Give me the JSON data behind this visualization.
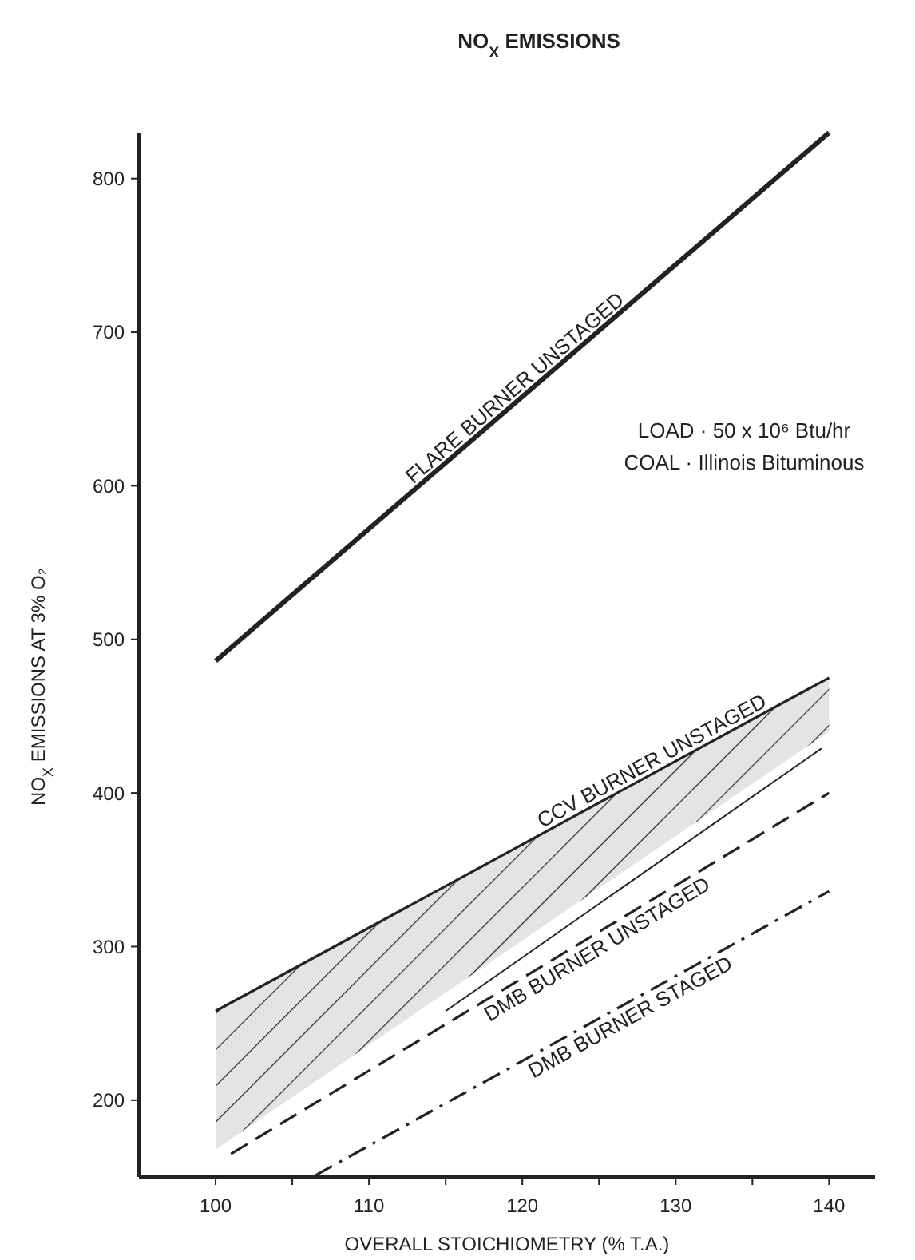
{
  "chart_data": {
    "type": "line",
    "title": "NO$_{X}$ EMISSIONS",
    "xlabel": "OVERALL STOICHIOMETRY (% T.A.)",
    "ylabel": "NO$_{X}$ EMISSIONS AT 3% O₂",
    "xlim": [
      95,
      143
    ],
    "ylim": [
      150,
      830
    ],
    "xticks": [
      100,
      {
        "value": 105,
        "label": null
      },
      110,
      {
        "value": 115,
        "label": null
      },
      120,
      {
        "value": 125,
        "label": null
      },
      130,
      {
        "value": 135,
        "label": null
      },
      140
    ],
    "yticks": [
      200,
      300,
      400,
      500,
      600,
      700,
      800
    ],
    "grid": false,
    "legend": false,
    "marker": "none",
    "annotations": [
      "LOAD · 50 x 10⁶ Btu/hr",
      "COAL · Illinois Bituminous"
    ],
    "series": [
      {
        "name": "FLARE BURNER UNSTAGED",
        "color": "#222222",
        "line_style": "solid",
        "x": [
          100,
          140
        ],
        "values": [
          486,
          830
        ]
      },
      {
        "name": "CCV BURNER UNSTAGED",
        "color": "#222222",
        "line_style": "solid",
        "x": [
          100,
          140
        ],
        "values": [
          258,
          475
        ],
        "lower": [
          168,
          440
        ],
        "upper": [
          258,
          475
        ]
      },
      {
        "name": "DMB BURNER UNSTAGED",
        "color": "#222222",
        "line_style": "dashed",
        "x": [
          101,
          140
        ],
        "values": [
          165,
          400
        ]
      },
      {
        "color": "#222222",
        "line_style": "solid",
        "x": [
          115,
          139.5
        ],
        "values": [
          258,
          429
        ]
      },
      {
        "name": "DMB BURNER STAGED",
        "color": "#222222",
        "line_style": "dotted",
        "x": [
          106.5,
          140
        ],
        "values": [
          151,
          336
        ]
      }
    ]
  }
}
